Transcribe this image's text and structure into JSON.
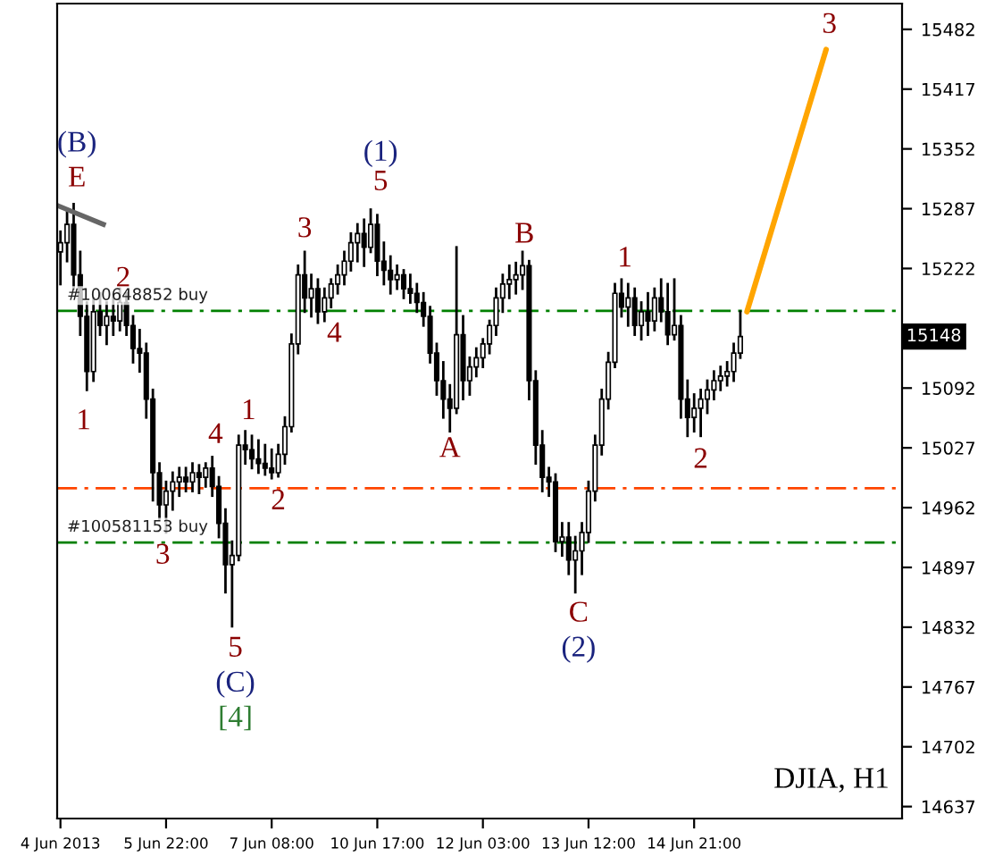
{
  "chart_data": {
    "type": "candlestick",
    "categories": [
      "4 Jun 2013",
      null,
      null,
      null,
      null,
      null,
      null,
      null,
      null,
      null,
      null,
      null,
      null,
      null,
      null,
      null,
      "5 Jun 22:00",
      null,
      null,
      null,
      null,
      null,
      null,
      null,
      null,
      null,
      null,
      null,
      null,
      null,
      null,
      null,
      "7 Jun 08:00",
      null,
      null,
      null,
      null,
      null,
      null,
      null,
      null,
      null,
      null,
      null,
      null,
      null,
      null,
      null,
      "10 Jun 17:00",
      null,
      null,
      null,
      null,
      null,
      null,
      null,
      null,
      null,
      null,
      null,
      null,
      null,
      null,
      null,
      "12 Jun 03:00",
      null,
      null,
      null,
      null,
      null,
      null,
      null,
      null,
      null,
      null,
      null,
      null,
      null,
      null,
      null,
      "13 Jun 12:00",
      null,
      null,
      null,
      null,
      null,
      null,
      null,
      null,
      null,
      null,
      null,
      null,
      null,
      null,
      null,
      "14 Jun 21:00",
      null,
      null,
      null,
      null,
      null,
      null,
      null,
      null,
      null,
      null,
      null,
      null,
      null,
      null,
      null,
      null,
      null,
      null,
      null,
      null,
      null,
      null,
      null,
      null,
      null,
      null,
      null,
      null,
      null,
      null,
      null
    ],
    "ohlc": [
      [
        15240,
        15262,
        15205,
        15250
      ],
      [
        15250,
        15285,
        15230,
        15270
      ],
      [
        15270,
        15292,
        15200,
        15215
      ],
      [
        15215,
        15240,
        15150,
        15170
      ],
      [
        15170,
        15185,
        15090,
        15110
      ],
      [
        15110,
        15190,
        15100,
        15175
      ],
      [
        15175,
        15195,
        15150,
        15160
      ],
      [
        15160,
        15185,
        15140,
        15170
      ],
      [
        15170,
        15190,
        15150,
        15165
      ],
      [
        15165,
        15200,
        15155,
        15185
      ],
      [
        15185,
        15195,
        15150,
        15160
      ],
      [
        15160,
        15170,
        15120,
        15135
      ],
      [
        15135,
        15155,
        15110,
        15130
      ],
      [
        15130,
        15140,
        15060,
        15080
      ],
      [
        15080,
        15090,
        14970,
        15000
      ],
      [
        15000,
        15010,
        14950,
        14965
      ],
      [
        14965,
        14990,
        14935,
        14980
      ],
      [
        14980,
        15000,
        14960,
        14990
      ],
      [
        14990,
        15005,
        14975,
        14995
      ],
      [
        14995,
        15005,
        14980,
        14990
      ],
      [
        14990,
        15010,
        14980,
        15000
      ],
      [
        15000,
        15008,
        14978,
        14995
      ],
      [
        14995,
        15010,
        14985,
        15005
      ],
      [
        15005,
        15017,
        14975,
        14985
      ],
      [
        14985,
        14995,
        14930,
        14945
      ],
      [
        14945,
        14960,
        14870,
        14900
      ],
      [
        14900,
        14925,
        14833,
        14910
      ],
      [
        14910,
        15040,
        14905,
        15030
      ],
      [
        15030,
        15045,
        15010,
        15025
      ],
      [
        15025,
        15040,
        15005,
        15015
      ],
      [
        15015,
        15035,
        15000,
        15010
      ],
      [
        15010,
        15030,
        14998,
        15005
      ],
      [
        15005,
        15025,
        14994,
        15000
      ],
      [
        15000,
        15030,
        14996,
        15020
      ],
      [
        15020,
        15060,
        15010,
        15050
      ],
      [
        15050,
        15150,
        15045,
        15140
      ],
      [
        15140,
        15225,
        15130,
        15215
      ],
      [
        15215,
        15240,
        15175,
        15190
      ],
      [
        15190,
        15215,
        15170,
        15200
      ],
      [
        15200,
        15210,
        15163,
        15175
      ],
      [
        15175,
        15200,
        15165,
        15190
      ],
      [
        15190,
        15210,
        15180,
        15205
      ],
      [
        15205,
        15225,
        15195,
        15215
      ],
      [
        15215,
        15240,
        15205,
        15230
      ],
      [
        15230,
        15260,
        15220,
        15250
      ],
      [
        15250,
        15270,
        15230,
        15260
      ],
      [
        15260,
        15275,
        15225,
        15245
      ],
      [
        15245,
        15286,
        15240,
        15270
      ],
      [
        15270,
        15280,
        15215,
        15230
      ],
      [
        15230,
        15250,
        15205,
        15220
      ],
      [
        15220,
        15235,
        15195,
        15210
      ],
      [
        15210,
        15225,
        15200,
        15215
      ],
      [
        15215,
        15220,
        15190,
        15200
      ],
      [
        15200,
        15215,
        15185,
        15195
      ],
      [
        15195,
        15205,
        15175,
        15185
      ],
      [
        15185,
        15195,
        15160,
        15170
      ],
      [
        15170,
        15180,
        15120,
        15130
      ],
      [
        15130,
        15140,
        15085,
        15100
      ],
      [
        15100,
        15120,
        15060,
        15080
      ],
      [
        15080,
        15095,
        15045,
        15070
      ],
      [
        15070,
        15245,
        15065,
        15150
      ],
      [
        15150,
        15170,
        15080,
        15100
      ],
      [
        15100,
        15125,
        15085,
        15115
      ],
      [
        15115,
        15135,
        15105,
        15125
      ],
      [
        15125,
        15145,
        15115,
        15140
      ],
      [
        15140,
        15165,
        15130,
        15160
      ],
      [
        15160,
        15200,
        15150,
        15190
      ],
      [
        15190,
        15215,
        15175,
        15205
      ],
      [
        15205,
        15225,
        15190,
        15210
      ],
      [
        15210,
        15228,
        15195,
        15215
      ],
      [
        15215,
        15240,
        15200,
        15225
      ],
      [
        15225,
        15230,
        15080,
        15100
      ],
      [
        15100,
        15110,
        15010,
        15030
      ],
      [
        15030,
        15045,
        14980,
        14995
      ],
      [
        14995,
        15005,
        14975,
        14990
      ],
      [
        14990,
        14998,
        14915,
        14925
      ],
      [
        14925,
        14945,
        14910,
        14930
      ],
      [
        14930,
        14945,
        14890,
        14905
      ],
      [
        14905,
        14930,
        14870,
        14915
      ],
      [
        14915,
        14945,
        14890,
        14935
      ],
      [
        14935,
        14990,
        14925,
        14980
      ],
      [
        14980,
        15040,
        14970,
        15030
      ],
      [
        15030,
        15090,
        15020,
        15080
      ],
      [
        15080,
        15130,
        15070,
        15120
      ],
      [
        15120,
        15205,
        15115,
        15195
      ],
      [
        15195,
        15210,
        15170,
        15180
      ],
      [
        15180,
        15205,
        15160,
        15190
      ],
      [
        15190,
        15200,
        15150,
        15160
      ],
      [
        15160,
        15185,
        15145,
        15175
      ],
      [
        15175,
        15195,
        15150,
        15165
      ],
      [
        15165,
        15200,
        15155,
        15190
      ],
      [
        15190,
        15210,
        15165,
        15175
      ],
      [
        15175,
        15205,
        15140,
        15150
      ],
      [
        15150,
        15210,
        15145,
        15160
      ],
      [
        15160,
        15170,
        15060,
        15080
      ],
      [
        15080,
        15100,
        15040,
        15060
      ],
      [
        15060,
        15085,
        15045,
        15070
      ],
      [
        15070,
        15090,
        15040,
        15080
      ],
      [
        15080,
        15100,
        15065,
        15090
      ],
      [
        15090,
        15110,
        15080,
        15100
      ],
      [
        15100,
        15115,
        15090,
        15105
      ],
      [
        15105,
        15120,
        15095,
        15110
      ],
      [
        15110,
        15140,
        15100,
        15130
      ],
      [
        15130,
        15175,
        15125,
        15148
      ],
      null,
      null,
      null,
      null,
      null,
      null,
      null,
      null,
      null,
      null,
      null,
      null,
      null,
      null,
      null,
      null,
      null,
      null,
      null,
      null,
      null,
      null,
      null,
      null
    ],
    "color": "#000000",
    "series": [
      {
        "type": "line",
        "color": "#ffa500",
        "values": [
          null,
          null,
          null,
          null,
          null,
          null,
          null,
          null,
          null,
          null,
          null,
          null,
          null,
          null,
          null,
          null,
          null,
          null,
          null,
          null,
          null,
          null,
          null,
          null,
          null,
          null,
          null,
          null,
          null,
          null,
          null,
          null,
          null,
          null,
          null,
          null,
          null,
          null,
          null,
          null,
          null,
          null,
          null,
          null,
          null,
          null,
          null,
          null,
          null,
          null,
          null,
          null,
          null,
          null,
          null,
          null,
          null,
          null,
          null,
          null,
          null,
          null,
          null,
          null,
          null,
          null,
          null,
          null,
          null,
          null,
          null,
          null,
          null,
          null,
          null,
          null,
          null,
          null,
          null,
          null,
          null,
          null,
          null,
          null,
          null,
          null,
          null,
          null,
          null,
          null,
          null,
          null,
          null,
          null,
          null,
          null,
          null,
          null,
          null,
          null,
          null,
          null,
          null,
          null,
          15175,
          null,
          null,
          null,
          null,
          null,
          null,
          null,
          null,
          null,
          null,
          null,
          15460,
          null,
          null,
          null,
          null,
          null,
          null,
          null,
          null,
          null,
          null,
          null
        ]
      }
    ],
    "ylim": [
      14624,
      15510
    ],
    "yticks": [
      15482,
      15417,
      15352,
      15287,
      15222,
      {
        "value": 15157,
        "label": null
      },
      15092,
      15027,
      14962,
      14897,
      14832,
      14767,
      14702,
      14637
    ],
    "ref_lines": [
      {
        "axis": "y",
        "value": 15176,
        "label": "#100648852 buy",
        "color": "#008000",
        "line_style": "dashdot"
      },
      {
        "axis": "y",
        "value": 14983,
        "color": "#ff4500",
        "line_style": "dashdot"
      },
      {
        "axis": "y",
        "value": 14924,
        "label": "#100581153 buy",
        "color": "#008000",
        "line_style": "dashdot"
      }
    ],
    "annotations": [
      "(B)",
      "E",
      "2",
      "1",
      "3",
      "4",
      "1",
      "2",
      "5",
      "(C)",
      "[4]",
      "3",
      "4",
      "(1)",
      "5",
      "A",
      "B",
      "C",
      "(2)",
      "1",
      "2",
      "3",
      "DJIA, H1",
      {
        "text": "15148",
        "y": 15148
      }
    ],
    "grid": false,
    "legend": false
  }
}
